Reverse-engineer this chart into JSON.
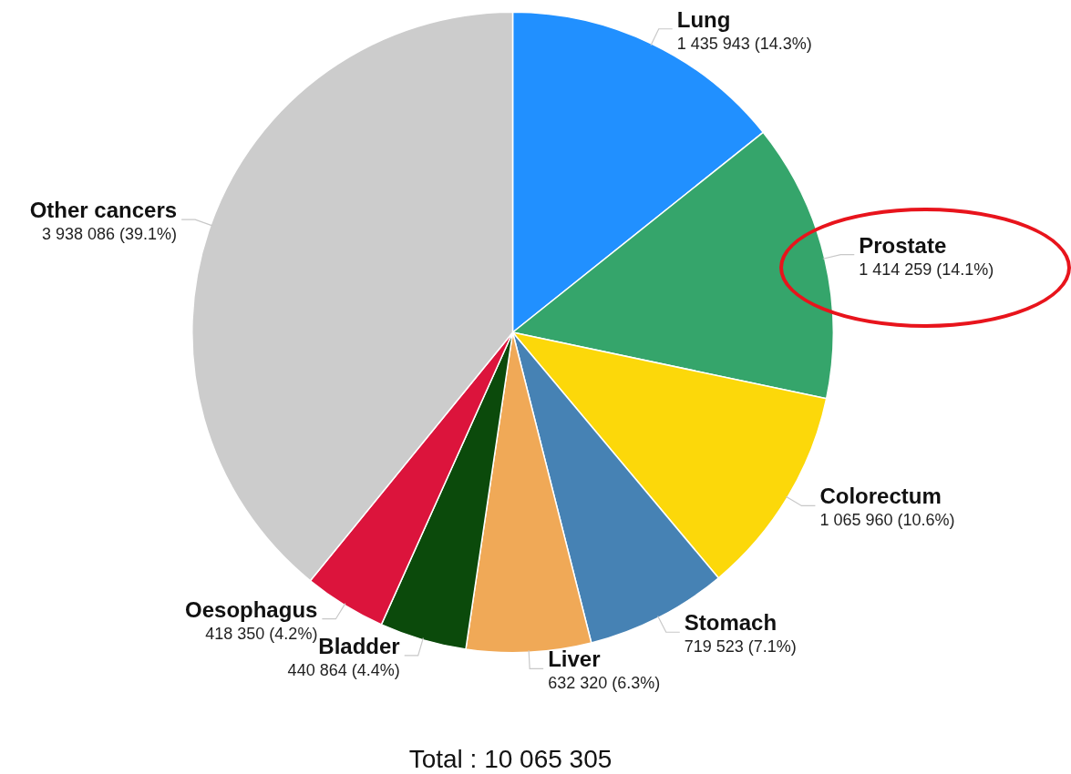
{
  "chart_data": {
    "type": "pie",
    "categories": [
      "Lung",
      "Prostate",
      "Colorectum",
      "Stomach",
      "Liver",
      "Bladder",
      "Oesophagus",
      "Other cancers"
    ],
    "values": [
      1435943,
      1414259,
      1065960,
      719523,
      632320,
      440864,
      418350,
      3938086
    ],
    "colors": [
      "#2190ff",
      "#35a56b",
      "#fcd80a",
      "#4682b4",
      "#f0a957",
      "#0b4a0b",
      "#dc143c",
      "#cccccc"
    ],
    "value_labels": [
      "1 435 943 (14.3%)",
      "1 414 259 (14.1%)",
      "1 065 960 (10.6%)",
      "719 523 (7.1%)",
      "632 320 (6.3%)",
      "440 864 (4.4%)",
      "418 350 (4.2%)",
      "3 938 086 (39.1%)"
    ],
    "annotations": [
      "Total : 10 065 305"
    ]
  }
}
